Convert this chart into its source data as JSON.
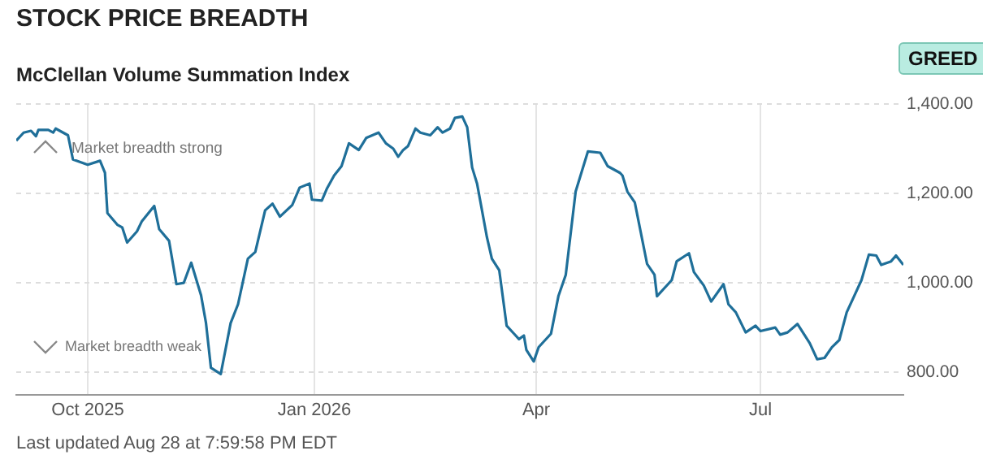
{
  "chart_data": {
    "type": "line",
    "title": "STOCK PRICE BREADTH",
    "subtitle": "McClellan Volume Summation Index",
    "annotations": [
      "Market breadth strong",
      "Market breadth weak",
      "GREED",
      "Last updated Aug 28 at 7:59:58 PM EDT"
    ],
    "x": [
      "2025-09-02",
      "2025-09-05",
      "2025-09-08",
      "2025-09-10",
      "2025-09-11",
      "2025-09-15",
      "2025-09-17",
      "2025-09-18",
      "2025-09-23",
      "2025-09-25",
      "2025-10-01",
      "2025-10-06",
      "2025-10-08",
      "2025-10-09",
      "2025-10-13",
      "2025-10-15",
      "2025-10-17",
      "2025-10-21",
      "2025-10-23",
      "2025-10-28",
      "2025-10-30",
      "2025-11-03",
      "2025-11-06",
      "2025-11-09",
      "2025-11-12",
      "2025-11-16",
      "2025-11-18",
      "2025-11-20",
      "2025-11-24",
      "2025-11-28",
      "2025-12-01",
      "2025-12-05",
      "2025-12-08",
      "2025-12-12",
      "2025-12-15",
      "2025-12-18",
      "2025-12-23",
      "2025-12-26",
      "2025-12-30",
      "2025-12-31",
      "2026-01-04",
      "2026-01-06",
      "2026-01-09",
      "2026-01-12",
      "2026-01-15",
      "2026-01-19",
      "2026-01-22",
      "2026-01-27",
      "2026-01-30",
      "2026-02-02",
      "2026-02-04",
      "2026-02-06",
      "2026-02-08",
      "2026-02-11",
      "2026-02-13",
      "2026-02-17",
      "2026-02-20",
      "2026-02-22",
      "2026-02-25",
      "2026-02-27",
      "2026-03-02",
      "2026-03-04",
      "2026-03-06",
      "2026-03-08",
      "2026-03-12",
      "2026-03-14",
      "2026-03-17",
      "2026-03-20",
      "2026-03-23",
      "2026-03-25",
      "2026-03-27",
      "2026-03-28",
      "2026-03-31",
      "2026-04-02",
      "2026-04-07",
      "2026-04-10",
      "2026-04-13",
      "2026-04-17",
      "2026-04-22",
      "2026-04-27",
      "2026-04-30",
      "2026-05-05",
      "2026-05-06",
      "2026-05-08",
      "2026-05-11",
      "2026-05-16",
      "2026-05-19",
      "2026-05-20",
      "2026-05-26",
      "2026-05-28",
      "2026-06-02",
      "2026-06-04",
      "2026-06-08",
      "2026-06-11",
      "2026-06-16",
      "2026-06-18",
      "2026-06-21",
      "2026-06-25",
      "2026-06-29",
      "2026-07-01",
      "2026-07-07",
      "2026-07-09",
      "2026-07-12",
      "2026-07-16",
      "2026-07-21",
      "2026-07-24",
      "2026-07-27",
      "2026-07-30",
      "2026-08-02",
      "2026-08-05",
      "2026-08-08",
      "2026-08-11",
      "2026-08-14",
      "2026-08-17",
      "2026-08-19",
      "2026-08-23",
      "2026-08-25",
      "2026-08-28"
    ],
    "series": [
      {
        "color": "#1f6f99",
        "values": [
          1318,
          1336,
          1340,
          1328,
          1342,
          1342,
          1336,
          1345,
          1330,
          1276,
          1264,
          1273,
          1246,
          1156,
          1130,
          1124,
          1090,
          1115,
          1138,
          1172,
          1120,
          1094,
          997,
          1000,
          1045,
          972,
          910,
          810,
          796,
          910,
          952,
          1054,
          1069,
          1162,
          1177,
          1148,
          1174,
          1213,
          1222,
          1186,
          1184,
          1210,
          1240,
          1261,
          1312,
          1297,
          1324,
          1336,
          1312,
          1300,
          1282,
          1297,
          1306,
          1345,
          1336,
          1330,
          1348,
          1336,
          1345,
          1369,
          1372,
          1348,
          1258,
          1222,
          1102,
          1054,
          1028,
          904,
          886,
          874,
          882,
          850,
          824,
          856,
          886,
          970,
          1018,
          1204,
          1294,
          1291,
          1261,
          1246,
          1240,
          1204,
          1180,
          1042,
          1018,
          970,
          1006,
          1048,
          1066,
          1024,
          994,
          958,
          997,
          952,
          934,
          889,
          904,
          892,
          900,
          884,
          889,
          908,
          865,
          829,
          832,
          856,
          872,
          934,
          970,
          1006,
          1063,
          1061,
          1040,
          1048,
          1061,
          1040
        ]
      }
    ],
    "xlim": [
      "2025-09-02",
      "2026-08-28"
    ],
    "xticks": [
      {
        "value": "2025-10-01",
        "label": "Oct 2025"
      },
      {
        "value": "2026-01-01",
        "label": "Jan 2026"
      },
      {
        "value": "2026-04-01",
        "label": "Apr"
      },
      {
        "value": "2026-07-01",
        "label": "Jul"
      }
    ],
    "ylim": [
      750,
      1400
    ],
    "yticks": [
      {
        "value": 800,
        "label": "800.00"
      },
      {
        "value": 1000,
        "label": "1,000.00"
      },
      {
        "value": 1200,
        "label": "1,200.00"
      },
      {
        "value": 1400,
        "label": "1,400.00"
      }
    ],
    "grid": true,
    "legend": false,
    "marker": "none",
    "line_style": "solid"
  }
}
